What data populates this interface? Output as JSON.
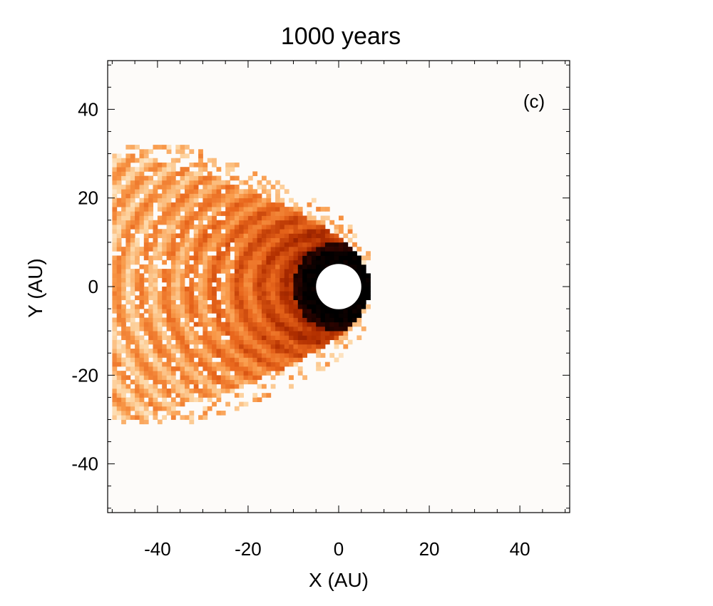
{
  "chart_data": {
    "type": "heatmap",
    "title": "1000 years",
    "xlabel": "X (AU)",
    "ylabel": "Y (AU)",
    "panel_label": "(c)",
    "xlim": [
      -51,
      51
    ],
    "ylim": [
      -51,
      51
    ],
    "xticks": [
      -40,
      -20,
      0,
      20,
      40
    ],
    "yticks": [
      -40,
      -20,
      0,
      20,
      40
    ],
    "colormap": [
      "#fdfbf9",
      "#fdd7a6",
      "#f99a4a",
      "#e8661c",
      "#b33000",
      "#7a1200",
      "#3a0500",
      "#000000"
    ],
    "structure": {
      "description": "cometary/paraboloid density distribution opening toward -X",
      "inner_hole_center": [
        0,
        0
      ],
      "inner_hole_radius": 5,
      "apex_x": 7,
      "cloud_extent_x": [
        -51,
        7
      ],
      "cloud_extent_y": [
        -30,
        30
      ],
      "hole_color": "#ffffff",
      "background_color": "#fdfbf9"
    }
  }
}
